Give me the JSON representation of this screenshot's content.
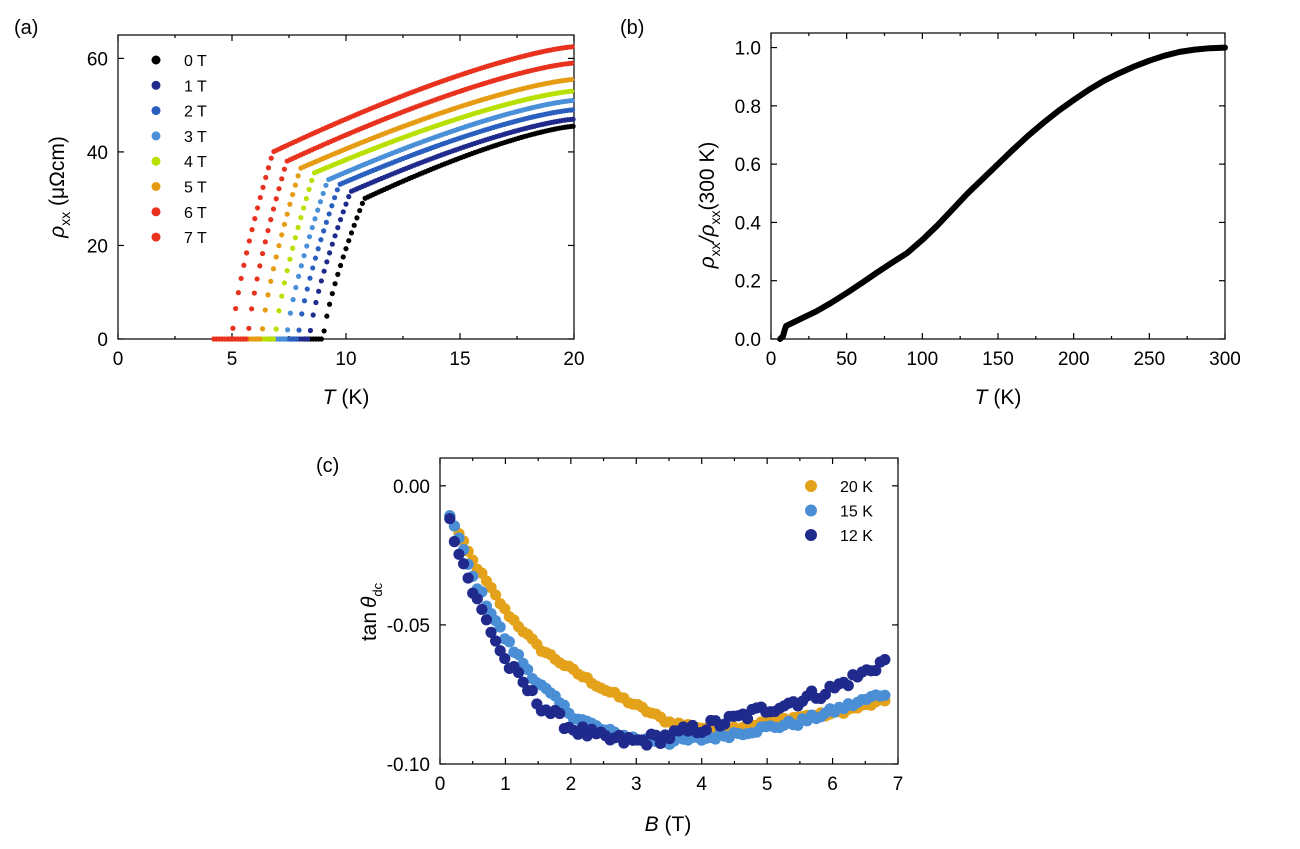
{
  "chart_data": [
    {
      "id": "a",
      "panel_label": "(a)",
      "type": "scatter",
      "xlabel_sym": "T",
      "xlabel_unit": " (K)",
      "ylabel_sym": "ρ",
      "ylabel_sub": "xx",
      "ylabel_unit": " (μΩcm)",
      "xlim": [
        0,
        20
      ],
      "ylim": [
        0,
        65
      ],
      "xticks": [
        0,
        5,
        10,
        15,
        20
      ],
      "yticks": [
        0,
        20,
        40,
        60
      ],
      "legend_position": "top-left",
      "series": [
        {
          "name": "0 T",
          "color": "#000000",
          "tc": 9.0,
          "knee": 10.8,
          "onset": 30.0,
          "end": 45.5
        },
        {
          "name": "1 T",
          "color": "#1f2a8c",
          "tc": 8.4,
          "knee": 10.2,
          "onset": 31.5,
          "end": 47.0
        },
        {
          "name": "2 T",
          "color": "#2a5fbf",
          "tc": 7.9,
          "knee": 9.7,
          "onset": 33.0,
          "end": 49.0
        },
        {
          "name": "3 T",
          "color": "#4a90d9",
          "tc": 7.4,
          "knee": 9.2,
          "onset": 34.0,
          "end": 51.0
        },
        {
          "name": "4 T",
          "color": "#b8e000",
          "tc": 6.9,
          "knee": 8.6,
          "onset": 35.5,
          "end": 53.0
        },
        {
          "name": "5 T",
          "color": "#e69c12",
          "tc": 6.3,
          "knee": 8.0,
          "onset": 36.5,
          "end": 55.5
        },
        {
          "name": "6 T",
          "color": "#e8321e",
          "tc": 5.7,
          "knee": 7.4,
          "onset": 38.0,
          "end": 59.0
        },
        {
          "name": "7 T",
          "color": "#e8321e",
          "tc": 5.0,
          "knee": 6.8,
          "onset": 40.0,
          "end": 62.5
        }
      ]
    },
    {
      "id": "b",
      "panel_label": "(b)",
      "type": "line",
      "xlabel_sym": "T",
      "xlabel_unit": " (K)",
      "ylabel": "ρxx/ρxx(300 K)",
      "ylabel_parts": [
        "ρ",
        "xx",
        "/ρ",
        "xx",
        "(300 K)"
      ],
      "xlim": [
        0,
        300
      ],
      "ylim": [
        0,
        1.05
      ],
      "xticks": [
        0,
        50,
        100,
        150,
        200,
        250,
        300
      ],
      "ytick_labels": [
        "0.0",
        "0.2",
        "0.4",
        "0.6",
        "0.8",
        "1.0"
      ],
      "yticks": [
        0,
        0.2,
        0.4,
        0.6,
        0.8,
        1.0
      ],
      "color": "#000000",
      "x": [
        6,
        8,
        9,
        10,
        20,
        30,
        40,
        50,
        60,
        70,
        80,
        90,
        100,
        110,
        120,
        130,
        140,
        150,
        160,
        170,
        180,
        190,
        200,
        210,
        220,
        230,
        240,
        250,
        260,
        270,
        280,
        290,
        300
      ],
      "y": [
        0.0,
        0.01,
        0.03,
        0.045,
        0.07,
        0.095,
        0.125,
        0.158,
        0.192,
        0.228,
        0.262,
        0.295,
        0.34,
        0.39,
        0.445,
        0.5,
        0.55,
        0.6,
        0.65,
        0.698,
        0.742,
        0.783,
        0.82,
        0.855,
        0.886,
        0.912,
        0.935,
        0.955,
        0.972,
        0.985,
        0.993,
        0.998,
        1.0
      ]
    },
    {
      "id": "c",
      "panel_label": "(c)",
      "type": "scatter",
      "xlabel_sym": "B",
      "xlabel_unit": " (T)",
      "ylabel_prefix": "tan",
      "ylabel_sym": "θ",
      "ylabel_sub": "dc",
      "xlim": [
        0,
        7
      ],
      "ylim": [
        -0.1,
        0.01
      ],
      "xticks": [
        0,
        1,
        2,
        3,
        4,
        5,
        6,
        7
      ],
      "yticks": [
        0.0,
        -0.05,
        -0.1
      ],
      "ytick_labels": [
        "0.00",
        "-0.05",
        "-0.10"
      ],
      "legend_position": "top-right",
      "series": [
        {
          "name": "20 K",
          "color": "#e3a21a",
          "knots_x": [
            0.15,
            0.5,
            1.0,
            1.5,
            2.0,
            2.5,
            3.0,
            3.5,
            4.0,
            4.5,
            5.0,
            5.5,
            6.0,
            6.5,
            6.85
          ],
          "knots_y": [
            -0.011,
            -0.027,
            -0.045,
            -0.058,
            -0.066,
            -0.073,
            -0.079,
            -0.085,
            -0.087,
            -0.087,
            -0.085,
            -0.083,
            -0.082,
            -0.079,
            -0.077
          ],
          "noise": 0.0008
        },
        {
          "name": "15 K",
          "color": "#4a8fd6",
          "knots_x": [
            0.15,
            0.5,
            1.0,
            1.5,
            2.0,
            2.5,
            3.0,
            3.5,
            4.0,
            4.5,
            5.0,
            5.5,
            6.0,
            6.5,
            6.85
          ],
          "knots_y": [
            -0.01,
            -0.033,
            -0.055,
            -0.071,
            -0.082,
            -0.088,
            -0.091,
            -0.092,
            -0.091,
            -0.089,
            -0.087,
            -0.085,
            -0.081,
            -0.077,
            -0.074
          ],
          "noise": 0.0012
        },
        {
          "name": "12 K",
          "color": "#1f2a8c",
          "knots_x": [
            0.15,
            0.5,
            1.0,
            1.5,
            2.0,
            2.5,
            3.0,
            3.5,
            4.0,
            4.5,
            5.0,
            5.5,
            6.0,
            6.5,
            6.85
          ],
          "knots_y": [
            -0.013,
            -0.038,
            -0.063,
            -0.078,
            -0.087,
            -0.091,
            -0.092,
            -0.09,
            -0.087,
            -0.084,
            -0.08,
            -0.077,
            -0.073,
            -0.067,
            -0.062
          ],
          "noise": 0.0022
        }
      ]
    }
  ]
}
